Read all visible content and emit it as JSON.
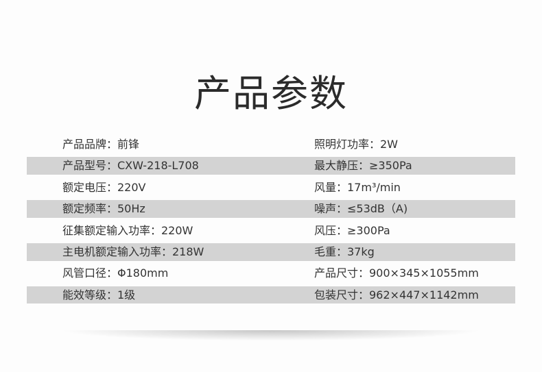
{
  "title": "产品参数",
  "rows": [
    {
      "left": "产品品牌：前锋",
      "right": "照明灯功率：2W"
    },
    {
      "left": "产品型号：CXW-218-L708",
      "right": "最大静压：≥350Pa"
    },
    {
      "left": "额定电压：220V",
      "right": "风量：17m³/min"
    },
    {
      "left": "额定频率：50Hz",
      "right": "噪声：≤53dB（A)"
    },
    {
      "left": "征集额定输入功率：220W",
      "right": "风压：≥300Pa"
    },
    {
      "left": "主电机额定输入功率：218W",
      "right": "毛重：37kg"
    },
    {
      "left": "风管口径：Φ180mm",
      "right": "产品尺寸：900×345×1055mm"
    },
    {
      "left": "能效等级：1级",
      "right": "包装尺寸：962×447×1142mm"
    }
  ],
  "colors": {
    "stripe": "#d3d3d3",
    "text": "#333333",
    "background": "#fdfdfd"
  }
}
